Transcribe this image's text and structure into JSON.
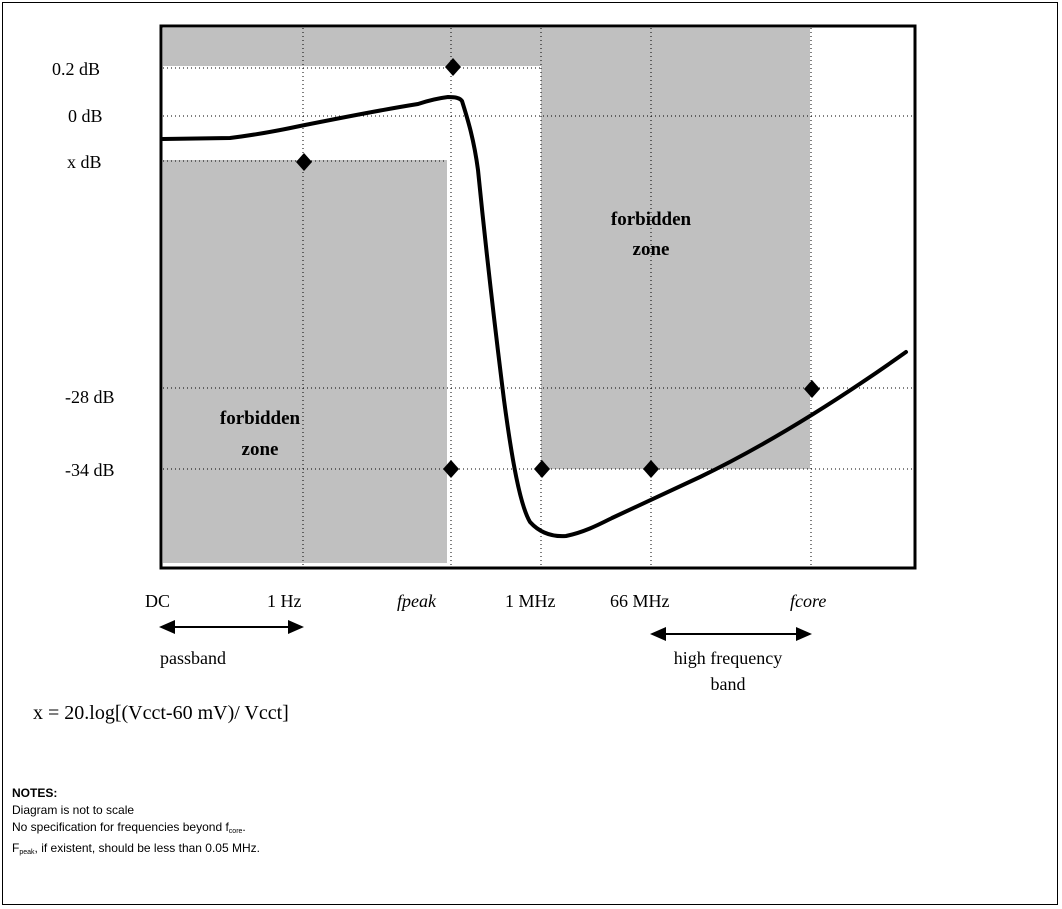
{
  "y_labels": {
    "p02": "0.2 dB",
    "p0": "0 dB",
    "px": "x dB",
    "m28": "-28 dB",
    "m34": "-34 dB"
  },
  "x_labels": {
    "dc": "DC",
    "hz1": "1 Hz",
    "fpeak": "fpeak",
    "mhz1": "1 MHz",
    "mhz66": "66 MHz",
    "fcore": "fcore"
  },
  "zones": {
    "left_line1": "forbidden",
    "left_line2": "zone",
    "right_line1": "forbidden",
    "right_line2": "zone"
  },
  "bands": {
    "passband": "passband",
    "high_line1": "high frequency",
    "high_line2": "band"
  },
  "formula": "x = 20.log[(Vcct-60 mV)/ Vcct]",
  "notes": {
    "header": "NOTES:",
    "line1": "Diagram is not to scale",
    "line2_pre": "No specification for frequencies beyond f",
    "line2_sub": "core",
    "line2_post": ".",
    "line3_pre": "F",
    "line3_sub": "peak",
    "line3_post": ", if existent, should be less than 0.05 MHz."
  },
  "colors": {
    "zone_fill": "#c0c0c0",
    "curve": "#000000",
    "grid": "#000000"
  }
}
